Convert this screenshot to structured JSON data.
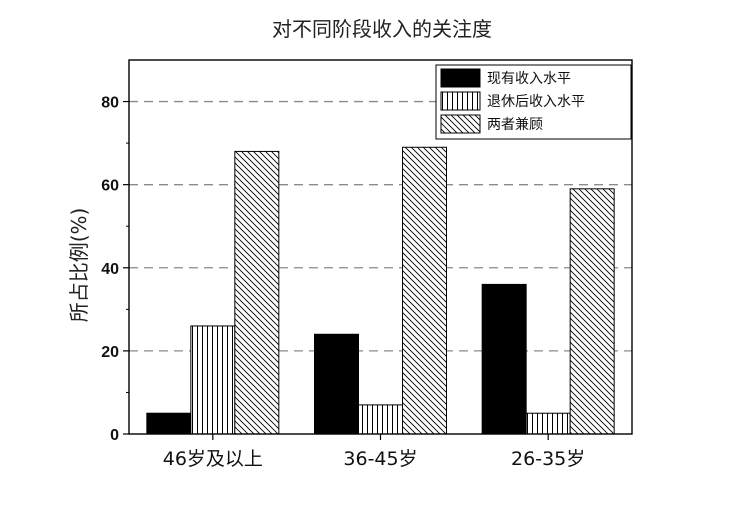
{
  "chart_data": {
    "type": "bar",
    "title": "对不同阶段收入的关注度",
    "xlabel": "",
    "ylabel": "所占比例(%)",
    "ylim": [
      0,
      90
    ],
    "yticks": [
      0,
      20,
      40,
      60,
      80
    ],
    "grid": "horizontal dashed at 20, 40, 60, 80",
    "legend_position": "top-right",
    "categories": [
      "46岁及以上",
      "36-45岁",
      "26-35岁"
    ],
    "series": [
      {
        "name": "现有收入水平",
        "values": [
          5,
          24,
          36
        ],
        "pattern": "solid",
        "color": "#000000"
      },
      {
        "name": "退休后收入水平",
        "values": [
          26,
          7,
          5
        ],
        "pattern": "vertical-lines",
        "color": "#000000"
      },
      {
        "name": "两者兼顾",
        "values": [
          68,
          69,
          59
        ],
        "pattern": "diagonal-hatch",
        "color": "#000000"
      }
    ]
  }
}
